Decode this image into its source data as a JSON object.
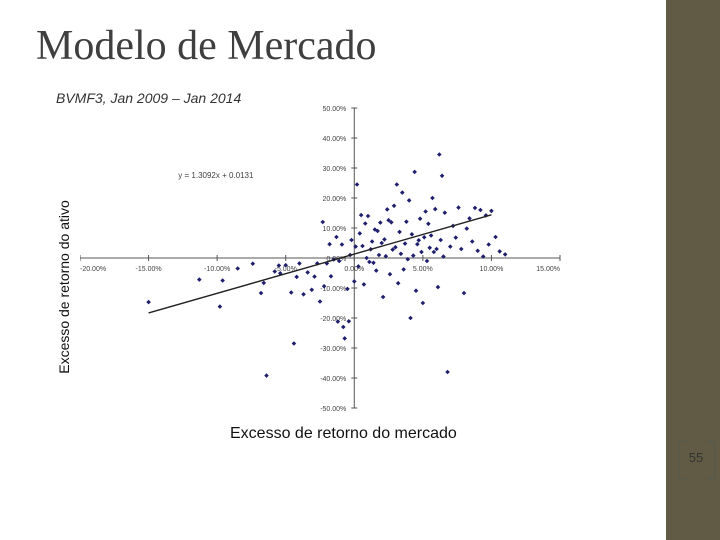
{
  "slide": {
    "title": "Modelo de Mercado",
    "page_number": "55",
    "sidebar_color": "#615b45"
  },
  "chart_data": {
    "type": "scatter",
    "title": "",
    "subtitle": "BVMF3, Jan 2009 – Jan 2014",
    "xlabel": "Excesso de retorno do mercado",
    "ylabel": "Excesso de retorno do ativo",
    "xlim": [
      -0.2,
      0.15
    ],
    "ylim": [
      -0.5,
      0.5
    ],
    "x_ticks": [
      -0.2,
      -0.15,
      -0.1,
      -0.05,
      0.0,
      0.05,
      0.1,
      0.15
    ],
    "x_tick_labels": [
      "-20.00%",
      "-15.00%",
      "-10.00%",
      "-5.00%",
      "0.00%",
      "5.00%",
      "10.00%",
      "15.00%"
    ],
    "y_ticks": [
      0.5,
      0.4,
      0.3,
      0.2,
      0.1,
      0.0,
      -0.1,
      -0.2,
      -0.3,
      -0.4,
      -0.5
    ],
    "y_tick_labels": [
      "50.00%",
      "40.00%",
      "30.00%",
      "20.00%",
      "10.00%",
      "0.00%",
      "-10.00%",
      "-20.00%",
      "-30.00%",
      "-40.00%",
      "-50.00%"
    ],
    "trendline": {
      "equation": "y = 1.3092x + 0.0131",
      "slope": 1.3092,
      "intercept": 0.0131,
      "x_range": [
        -0.15,
        0.1
      ]
    },
    "marker_color": "#1f1f6e",
    "trend_color": "#222222",
    "grid": false,
    "series": [
      {
        "points": [
          [
            -0.15,
            -0.147
          ],
          [
            -0.113,
            -0.072
          ],
          [
            -0.098,
            -0.162
          ],
          [
            -0.096,
            -0.075
          ],
          [
            -0.085,
            -0.035
          ],
          [
            -0.074,
            -0.019
          ],
          [
            -0.068,
            -0.117
          ],
          [
            -0.066,
            -0.083
          ],
          [
            -0.064,
            -0.392
          ],
          [
            -0.058,
            -0.045
          ],
          [
            -0.055,
            -0.025
          ],
          [
            -0.054,
            -0.051
          ],
          [
            -0.05,
            -0.024
          ],
          [
            -0.046,
            -0.115
          ],
          [
            -0.044,
            -0.285
          ],
          [
            -0.042,
            -0.063
          ],
          [
            -0.04,
            -0.018
          ],
          [
            -0.037,
            -0.121
          ],
          [
            -0.034,
            -0.048
          ],
          [
            -0.031,
            -0.106
          ],
          [
            -0.029,
            -0.062
          ],
          [
            -0.027,
            -0.018
          ],
          [
            -0.025,
            -0.145
          ],
          [
            -0.023,
            0.12
          ],
          [
            -0.022,
            -0.094
          ],
          [
            -0.02,
            -0.018
          ],
          [
            -0.018,
            0.046
          ],
          [
            -0.017,
            -0.061
          ],
          [
            -0.015,
            -0.005
          ],
          [
            -0.013,
            0.07
          ],
          [
            -0.012,
            -0.212
          ],
          [
            -0.011,
            -0.01
          ],
          [
            -0.009,
            0.045
          ],
          [
            -0.008,
            -0.23
          ],
          [
            -0.007,
            -0.268
          ],
          [
            -0.005,
            -0.103
          ],
          [
            -0.004,
            -0.211
          ],
          [
            -0.003,
            0.01
          ],
          [
            -0.002,
            0.06
          ],
          [
            0.0,
            -0.078
          ],
          [
            0.001,
            0.038
          ],
          [
            0.002,
            0.245
          ],
          [
            0.003,
            -0.028
          ],
          [
            0.004,
            0.082
          ],
          [
            0.005,
            0.143
          ],
          [
            0.006,
            0.04
          ],
          [
            0.007,
            -0.088
          ],
          [
            0.008,
            0.115
          ],
          [
            0.009,
            0.0
          ],
          [
            0.01,
            0.14
          ],
          [
            0.011,
            -0.013
          ],
          [
            0.012,
            0.029
          ],
          [
            0.013,
            0.055
          ],
          [
            0.014,
            -0.016
          ],
          [
            0.015,
            0.095
          ],
          [
            0.016,
            -0.042
          ],
          [
            0.017,
            0.09
          ],
          [
            0.018,
            0.01
          ],
          [
            0.019,
            0.118
          ],
          [
            0.02,
            0.05
          ],
          [
            0.021,
            -0.13
          ],
          [
            0.022,
            0.062
          ],
          [
            0.023,
            0.006
          ],
          [
            0.024,
            0.162
          ],
          [
            0.025,
            0.126
          ],
          [
            0.026,
            -0.054
          ],
          [
            0.027,
            0.119
          ],
          [
            0.028,
            0.028
          ],
          [
            0.029,
            0.174
          ],
          [
            0.03,
            0.036
          ],
          [
            0.031,
            0.245
          ],
          [
            0.032,
            -0.084
          ],
          [
            0.033,
            0.087
          ],
          [
            0.034,
            0.014
          ],
          [
            0.035,
            0.218
          ],
          [
            0.036,
            -0.038
          ],
          [
            0.037,
            0.048
          ],
          [
            0.038,
            0.121
          ],
          [
            0.039,
            -0.004
          ],
          [
            0.04,
            0.192
          ],
          [
            0.041,
            -0.2
          ],
          [
            0.042,
            0.079
          ],
          [
            0.043,
            0.008
          ],
          [
            0.044,
            0.287
          ],
          [
            0.045,
            -0.109
          ],
          [
            0.046,
            0.046
          ],
          [
            0.047,
            0.059
          ],
          [
            0.048,
            0.131
          ],
          [
            0.049,
            0.02
          ],
          [
            0.05,
            -0.15
          ],
          [
            0.051,
            0.069
          ],
          [
            0.052,
            0.155
          ],
          [
            0.053,
            -0.01
          ],
          [
            0.054,
            0.114
          ],
          [
            0.055,
            0.034
          ],
          [
            0.056,
            0.075
          ],
          [
            0.057,
            0.2
          ],
          [
            0.058,
            0.02
          ],
          [
            0.059,
            0.163
          ],
          [
            0.06,
            0.03
          ],
          [
            0.061,
            -0.097
          ],
          [
            0.062,
            0.345
          ],
          [
            0.063,
            0.06
          ],
          [
            0.064,
            0.274
          ],
          [
            0.065,
            0.005
          ],
          [
            0.066,
            0.151
          ],
          [
            0.068,
            -0.38
          ],
          [
            0.07,
            0.038
          ],
          [
            0.072,
            0.107
          ],
          [
            0.074,
            0.068
          ],
          [
            0.076,
            0.168
          ],
          [
            0.078,
            0.03
          ],
          [
            0.08,
            -0.117
          ],
          [
            0.082,
            0.098
          ],
          [
            0.084,
            0.132
          ],
          [
            0.086,
            0.055
          ],
          [
            0.088,
            0.167
          ],
          [
            0.09,
            0.024
          ],
          [
            0.092,
            0.16
          ],
          [
            0.094,
            0.005
          ],
          [
            0.096,
            0.142
          ],
          [
            0.098,
            0.045
          ],
          [
            0.1,
            0.157
          ],
          [
            0.103,
            0.07
          ],
          [
            0.106,
            0.022
          ],
          [
            0.11,
            0.012
          ]
        ]
      }
    ]
  }
}
